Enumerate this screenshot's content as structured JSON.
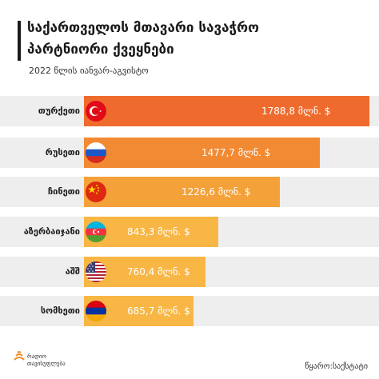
{
  "header": {
    "title_line1": "საქართველოს მთავარი სავაჭრო",
    "title_line2": "პარტნიორი ქვეყნები",
    "subtitle": "2022 წლის იანვარ-აგვისტო"
  },
  "chart_data": {
    "type": "bar",
    "orientation": "horizontal",
    "categories": [
      "თურქეთი",
      "რუსეთი",
      "ჩინეთი",
      "აზერბაიჯანი",
      "აშშ",
      "სომხეთი"
    ],
    "values": [
      1788.8,
      1477.7,
      1226.6,
      843.3,
      760.4,
      685.7
    ],
    "value_labels": [
      "1788,8 მლნ. $",
      "1477,7 მლნ. $",
      "1226,6 მლნ. $",
      "843,3 მლნ. $",
      "760,4 მლნ. $",
      "685,7 მლნ. $"
    ],
    "flags": [
      "turkey-flag-icon",
      "russia-flag-icon",
      "china-flag-icon",
      "azerbaijan-flag-icon",
      "usa-flag-icon",
      "armenia-flag-icon"
    ],
    "bar_colors": [
      "#ef6b2d",
      "#f28a33",
      "#f5a13a",
      "#f8b645",
      "#f8b645",
      "#f8b645"
    ],
    "xlim": [
      0,
      2000
    ]
  },
  "footer": {
    "logo_line1": "რადიო",
    "logo_line2": "თავისუფლება",
    "source": "წყარო:საქსტატი"
  },
  "colors": {
    "row_background": "#eeeeee",
    "title": "#1a1a1a",
    "logo_accent": "#f08a24"
  }
}
